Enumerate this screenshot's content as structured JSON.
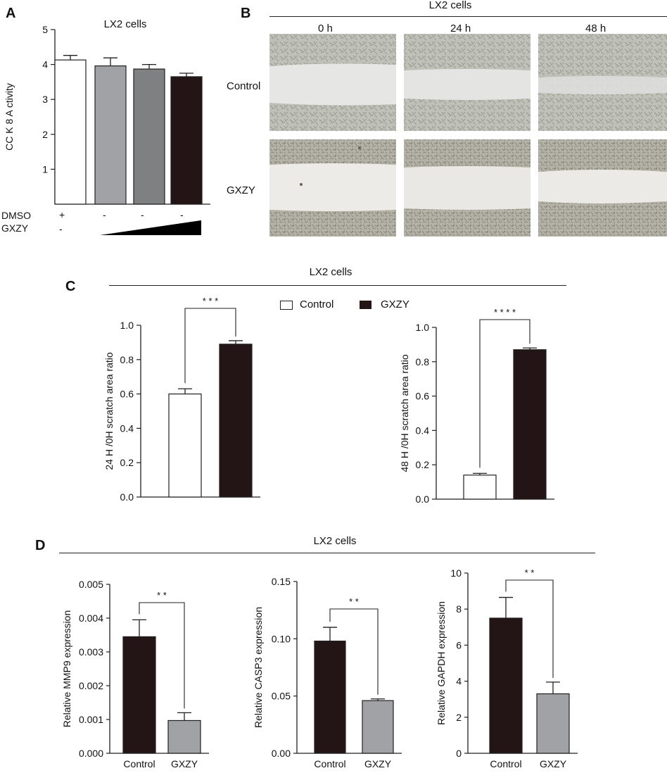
{
  "panels": {
    "a": {
      "letter": "A",
      "title": "LX2 cells"
    },
    "b": {
      "letter": "B",
      "title": "LX2 cells",
      "time_labels": [
        "0 h",
        "24 h",
        "48 h"
      ],
      "row_labels": [
        "Control",
        "GXZY"
      ]
    },
    "c": {
      "letter": "C",
      "title": "LX2 cells",
      "legend": [
        "Control",
        "GXZY"
      ]
    },
    "d": {
      "letter": "D",
      "title": "LX2 cells"
    }
  },
  "treatment": {
    "dmso_label": "DMSO",
    "gxzy_label": "GXZY",
    "dmso_marks": [
      "+",
      "-",
      "-",
      "-"
    ],
    "gxzy_marks": [
      "-"
    ]
  },
  "colors": {
    "white": "#ffffff",
    "grey_light": "#a0a2a6",
    "grey_dark": "#7e8082",
    "black": "#231516",
    "border": "#231f20"
  },
  "chart_data": [
    {
      "id": "cck8",
      "type": "bar",
      "ylabel": "CC K 8  A ctivity",
      "ylim": [
        0,
        5
      ],
      "yticks": [
        "1",
        "2",
        "3",
        "4",
        "5"
      ],
      "values": [
        4.13,
        3.96,
        3.87,
        3.65
      ],
      "errors": [
        0.13,
        0.23,
        0.13,
        0.1
      ],
      "colors": [
        "#ffffff",
        "#a0a2a6",
        "#7e8082",
        "#231516"
      ]
    },
    {
      "id": "scratch24",
      "type": "bar",
      "ylabel": "24 H /0H  scratch area ratio",
      "ylim": [
        0,
        1.0
      ],
      "yticks": [
        "0.0",
        "0.2",
        "0.4",
        "0.6",
        "0.8",
        "1.0"
      ],
      "categories": [
        "Control",
        "GXZY"
      ],
      "values": [
        0.6,
        0.89
      ],
      "errors": [
        0.03,
        0.02
      ],
      "colors": [
        "#ffffff",
        "#231516"
      ],
      "significance": "* * *"
    },
    {
      "id": "scratch48",
      "type": "bar",
      "ylabel": "48 H /0H  scratch area ratio",
      "ylim": [
        0,
        1.0
      ],
      "yticks": [
        "0.0",
        "0.2",
        "0.4",
        "0.6",
        "0.8",
        "1.0"
      ],
      "categories": [
        "Control",
        "GXZY"
      ],
      "values": [
        0.14,
        0.87
      ],
      "errors": [
        0.01,
        0.01
      ],
      "colors": [
        "#ffffff",
        "#231516"
      ],
      "significance": "* * * *"
    },
    {
      "id": "mmp9",
      "type": "bar",
      "ylabel": "Relative MMP9 expression",
      "ylim": [
        0,
        0.005
      ],
      "yticks": [
        "0.000",
        "0.001",
        "0.002",
        "0.003",
        "0.004",
        "0.005"
      ],
      "categories": [
        "Control",
        "GXZY"
      ],
      "values": [
        0.00345,
        0.00097
      ],
      "errors": [
        0.0005,
        0.00023
      ],
      "colors": [
        "#231516",
        "#a0a2a6"
      ],
      "significance": "* *"
    },
    {
      "id": "casp3",
      "type": "bar",
      "ylabel": "Relative CASP3 expression",
      "ylim": [
        0,
        0.15
      ],
      "yticks": [
        "0.00",
        "0.05",
        "0.10",
        "0.15"
      ],
      "categories": [
        "Control",
        "GXZY"
      ],
      "values": [
        0.098,
        0.046
      ],
      "errors": [
        0.012,
        0.0015
      ],
      "colors": [
        "#231516",
        "#a0a2a6"
      ],
      "significance": "* *"
    },
    {
      "id": "gapdh",
      "type": "bar",
      "ylabel": "Relative GAPDH expression",
      "ylim": [
        0,
        10
      ],
      "yticks": [
        "0",
        "2",
        "4",
        "6",
        "8",
        "10"
      ],
      "categories": [
        "Control",
        "GXZY"
      ],
      "values": [
        7.5,
        3.3
      ],
      "errors": [
        1.15,
        0.65
      ],
      "colors": [
        "#231516",
        "#a0a2a6"
      ],
      "significance": "* *"
    }
  ]
}
